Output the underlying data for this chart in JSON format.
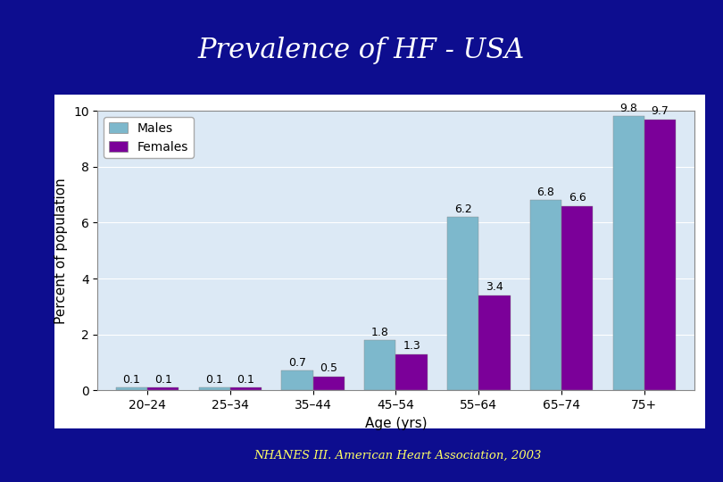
{
  "title": "Prevalence of HF - USA",
  "title_color": "#ffffff",
  "background_color": "#0d0d8f",
  "chart_bg_color": "#dce9f5",
  "chart_border_color": "#c0c0c0",
  "subtitle": "NHANES III. American Heart Association, 2003",
  "subtitle_color": "#ffff66",
  "categories": [
    "20–24",
    "25–34",
    "35–44",
    "45–54",
    "55–64",
    "65–74",
    "75+"
  ],
  "males": [
    0.1,
    0.1,
    0.7,
    1.8,
    6.2,
    6.8,
    9.8
  ],
  "females": [
    0.1,
    0.1,
    0.5,
    1.3,
    3.4,
    6.6,
    9.7
  ],
  "male_color": "#7db8cc",
  "female_color": "#7b0099",
  "ylabel": "Percent of population",
  "xlabel": "Age (yrs)",
  "ylim": [
    0,
    10
  ],
  "yticks": [
    0,
    2,
    4,
    6,
    8,
    10
  ],
  "bar_width": 0.38,
  "legend_labels": [
    "Males",
    "Females"
  ],
  "title_fontsize": 22,
  "axis_label_fontsize": 11,
  "tick_fontsize": 10,
  "annot_fontsize": 9,
  "legend_fontsize": 10
}
